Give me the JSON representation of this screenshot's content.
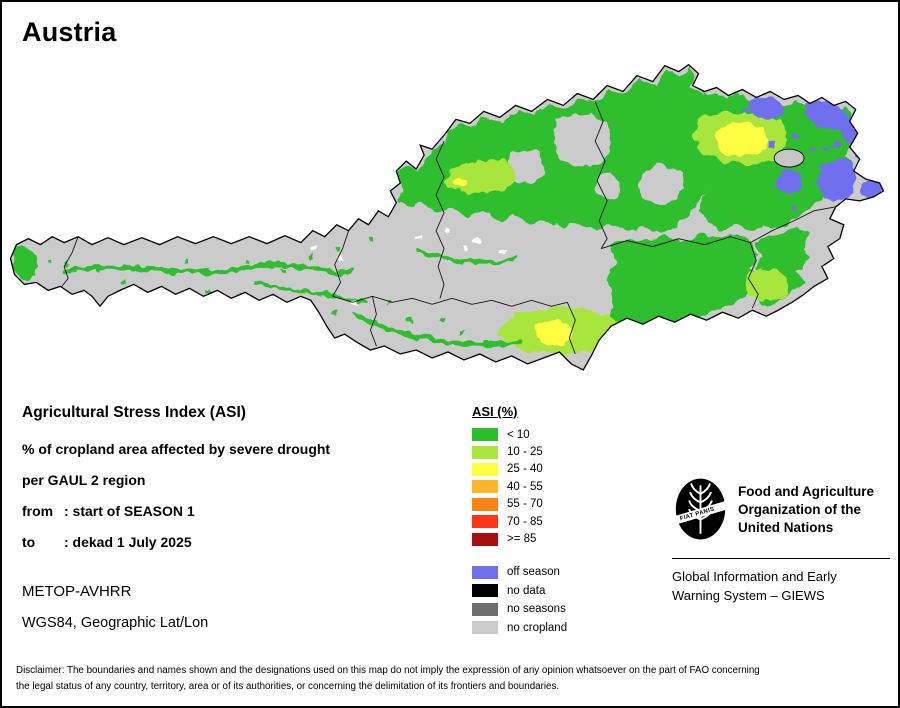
{
  "title": "Austria",
  "info": {
    "heading": "Agricultural Stress Index (ASI)",
    "line1": "% of cropland area affected by severe drought",
    "line2": "per GAUL 2 region",
    "from_label": "from",
    "from_value": ": start of SEASON 1",
    "to_label": "to",
    "to_value": ": dekad 1 July 2025",
    "sensor": "METOP-AVHRR",
    "projection": "WGS84, Geographic Lat/Lon"
  },
  "legend": {
    "title": "ASI (%)",
    "classes": [
      {
        "label": "< 10",
        "color": "#2DBE2D"
      },
      {
        "label": "10 - 25",
        "color": "#A8E63C"
      },
      {
        "label": "25 - 40",
        "color": "#FFFF42"
      },
      {
        "label": "40 - 55",
        "color": "#FFB629"
      },
      {
        "label": "55 - 70",
        "color": "#FF8217"
      },
      {
        "label": "70 - 85",
        "color": "#FF3518"
      },
      {
        "label": ">= 85",
        "color": "#A80E0E"
      }
    ],
    "extra_classes": [
      {
        "label": "off season",
        "color": "#7070EE"
      },
      {
        "label": "no data",
        "color": "#000000"
      },
      {
        "label": "no seasons",
        "color": "#6E6E6E"
      },
      {
        "label": "no cropland",
        "color": "#CBCBCB"
      }
    ]
  },
  "org": {
    "name_lines": [
      "Food and Agriculture",
      "Organization of the",
      "United Nations"
    ],
    "motto": "FIAT PANIS",
    "subtitle_lines": [
      "Global Information and Early",
      "Warning System – GIEWS"
    ]
  },
  "disclaimer": "Disclaimer: The boundaries and names shown and the designations used on this map do not imply the expression of any opinion whatsoever on the part of FAO concerning the legal status of any country, territory, area or of its authorities, or concerning the delimitation of its frontiers and boundaries."
}
